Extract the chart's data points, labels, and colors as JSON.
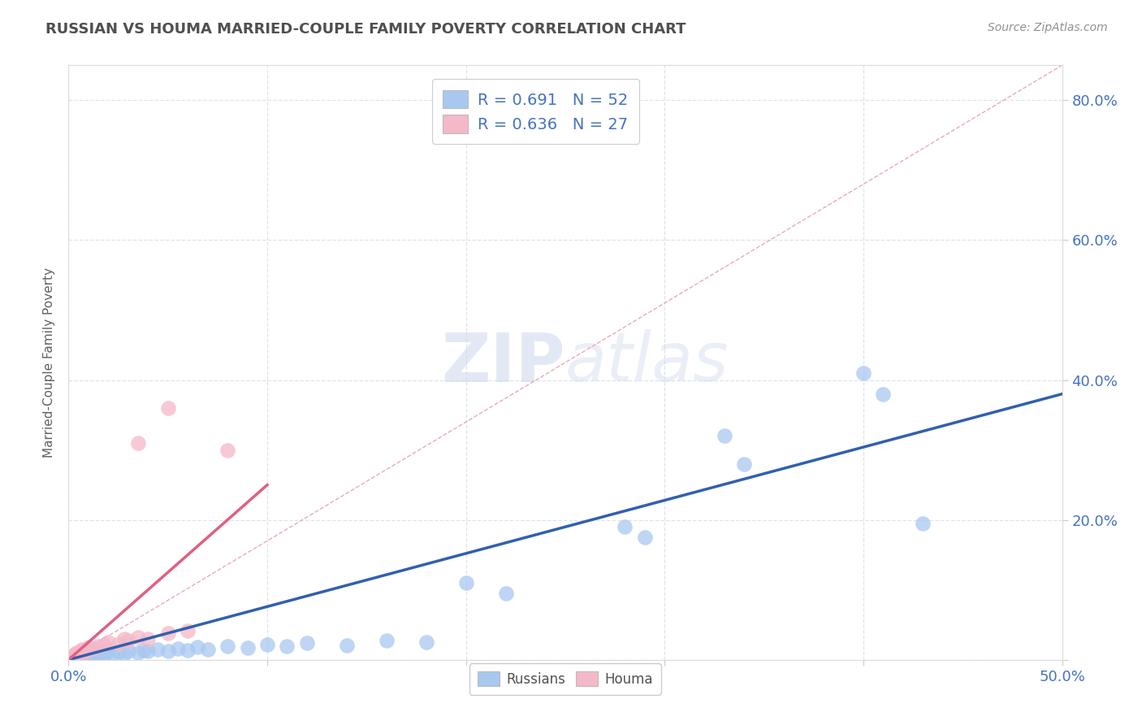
{
  "title": "RUSSIAN VS HOUMA MARRIED-COUPLE FAMILY POVERTY CORRELATION CHART",
  "source": "Source: ZipAtlas.com",
  "ylabel": "Married-Couple Family Poverty",
  "xlim": [
    0.0,
    0.5
  ],
  "ylim": [
    0.0,
    0.85
  ],
  "xticks": [
    0.0,
    0.1,
    0.2,
    0.3,
    0.4,
    0.5
  ],
  "xticklabels": [
    "0.0%",
    "",
    "",
    "",
    "",
    "50.0%"
  ],
  "yticks": [
    0.0,
    0.2,
    0.4,
    0.6,
    0.8
  ],
  "right_yticklabels": [
    "",
    "20.0%",
    "40.0%",
    "60.0%",
    "80.0%"
  ],
  "watermark_zip": "ZIP",
  "watermark_atlas": "atlas",
  "legend_r1": "R = 0.691",
  "legend_n1": "N = 52",
  "legend_r2": "R = 0.636",
  "legend_n2": "N = 27",
  "russian_color": "#a8c8f0",
  "houma_color": "#f5b8c8",
  "russian_line_color": "#3060b0",
  "houma_line_color": "#e06080",
  "dashed_line_color": "#e8a0b0",
  "background_color": "#ffffff",
  "gridline_color": "#dce4f0",
  "title_color": "#505050",
  "source_color": "#909090",
  "tick_color": "#4472c4",
  "legend_text_color": "#4472c4",
  "legend_N_color": "#c03030",
  "russians_points": [
    [
      0.001,
      0.002
    ],
    [
      0.002,
      0.004
    ],
    [
      0.002,
      0.001
    ],
    [
      0.003,
      0.006
    ],
    [
      0.003,
      0.003
    ],
    [
      0.004,
      0.002
    ],
    [
      0.004,
      0.007
    ],
    [
      0.005,
      0.003
    ],
    [
      0.005,
      0.005
    ],
    [
      0.006,
      0.004
    ],
    [
      0.007,
      0.006
    ],
    [
      0.007,
      0.002
    ],
    [
      0.008,
      0.005
    ],
    [
      0.009,
      0.007
    ],
    [
      0.01,
      0.004
    ],
    [
      0.01,
      0.008
    ],
    [
      0.012,
      0.006
    ],
    [
      0.013,
      0.009
    ],
    [
      0.015,
      0.005
    ],
    [
      0.016,
      0.01
    ],
    [
      0.018,
      0.007
    ],
    [
      0.02,
      0.012
    ],
    [
      0.022,
      0.008
    ],
    [
      0.025,
      0.011
    ],
    [
      0.028,
      0.009
    ],
    [
      0.03,
      0.013
    ],
    [
      0.035,
      0.01
    ],
    [
      0.038,
      0.014
    ],
    [
      0.04,
      0.012
    ],
    [
      0.045,
      0.015
    ],
    [
      0.05,
      0.013
    ],
    [
      0.055,
      0.016
    ],
    [
      0.06,
      0.014
    ],
    [
      0.065,
      0.018
    ],
    [
      0.07,
      0.015
    ],
    [
      0.08,
      0.02
    ],
    [
      0.09,
      0.017
    ],
    [
      0.1,
      0.022
    ],
    [
      0.11,
      0.019
    ],
    [
      0.12,
      0.024
    ],
    [
      0.14,
      0.021
    ],
    [
      0.16,
      0.028
    ],
    [
      0.18,
      0.025
    ],
    [
      0.2,
      0.11
    ],
    [
      0.22,
      0.095
    ],
    [
      0.28,
      0.19
    ],
    [
      0.29,
      0.175
    ],
    [
      0.33,
      0.32
    ],
    [
      0.34,
      0.28
    ],
    [
      0.4,
      0.41
    ],
    [
      0.41,
      0.38
    ],
    [
      0.43,
      0.195
    ]
  ],
  "houma_points": [
    [
      0.001,
      0.003
    ],
    [
      0.002,
      0.006
    ],
    [
      0.002,
      0.004
    ],
    [
      0.003,
      0.008
    ],
    [
      0.003,
      0.005
    ],
    [
      0.004,
      0.01
    ],
    [
      0.005,
      0.007
    ],
    [
      0.006,
      0.012
    ],
    [
      0.006,
      0.009
    ],
    [
      0.007,
      0.015
    ],
    [
      0.008,
      0.011
    ],
    [
      0.009,
      0.014
    ],
    [
      0.01,
      0.018
    ],
    [
      0.012,
      0.016
    ],
    [
      0.015,
      0.02
    ],
    [
      0.018,
      0.022
    ],
    [
      0.02,
      0.025
    ],
    [
      0.025,
      0.023
    ],
    [
      0.028,
      0.03
    ],
    [
      0.03,
      0.028
    ],
    [
      0.035,
      0.032
    ],
    [
      0.04,
      0.03
    ],
    [
      0.05,
      0.038
    ],
    [
      0.06,
      0.042
    ],
    [
      0.08,
      0.3
    ],
    [
      0.05,
      0.36
    ],
    [
      0.035,
      0.31
    ]
  ],
  "russian_line_x": [
    0.0,
    0.5
  ],
  "russian_line_y": [
    0.0,
    0.38
  ],
  "houma_line_x": [
    0.0,
    0.1
  ],
  "houma_line_y": [
    0.0,
    0.25
  ],
  "dashed_line_x": [
    0.0,
    0.5
  ],
  "dashed_line_y": [
    0.0,
    0.85
  ]
}
